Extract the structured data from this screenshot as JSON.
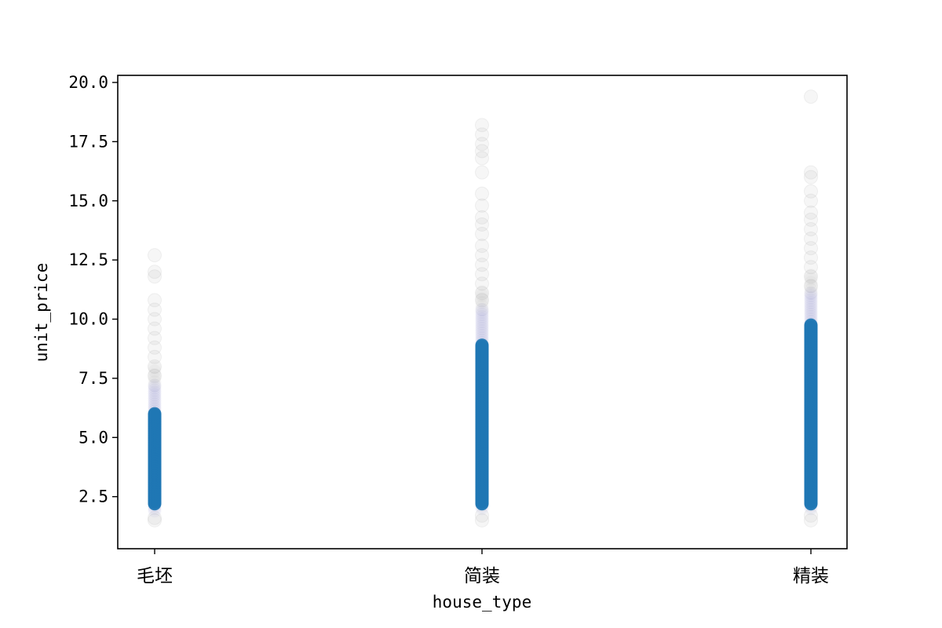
{
  "chart_data": {
    "type": "scatter",
    "title": "",
    "xlabel": "house_type",
    "ylabel": "unit_price",
    "categories": [
      "毛坯",
      "简装",
      "精装"
    ],
    "ylim": [
      0.3,
      20.3
    ],
    "yticks": [
      2.5,
      5.0,
      7.5,
      10.0,
      12.5,
      15.0,
      17.5,
      20.0
    ],
    "ytick_labels": [
      "2.5",
      "5.0",
      "7.5",
      "10.0",
      "12.5",
      "15.0",
      "17.5",
      "20.0"
    ],
    "grid": false,
    "legend": "none",
    "series": [
      {
        "category": "毛坯",
        "dense_range": [
          2.2,
          6.0
        ],
        "purple_range": [
          1.9,
          7.2
        ],
        "outliers": [
          1.5,
          1.6,
          7.6,
          8.0,
          8.4,
          8.8,
          9.2,
          9.6,
          10.0,
          10.4,
          10.8,
          11.8,
          12.0,
          12.7
        ]
      },
      {
        "category": "简装",
        "dense_range": [
          2.2,
          8.9
        ],
        "purple_range": [
          2.0,
          10.4
        ],
        "outliers": [
          1.5,
          1.7,
          10.8,
          11.1,
          11.5,
          11.9,
          12.3,
          12.7,
          13.1,
          13.6,
          14.0,
          14.3,
          14.8,
          15.3,
          16.2,
          16.8,
          17.1,
          17.4,
          17.8,
          18.2
        ]
      },
      {
        "category": "精装",
        "dense_range": [
          2.2,
          9.8
        ],
        "purple_range": [
          2.0,
          11.1
        ],
        "outliers": [
          1.5,
          1.7,
          11.4,
          11.8,
          12.2,
          12.6,
          13.0,
          13.4,
          13.8,
          14.2,
          14.5,
          15.0,
          15.4,
          16.0,
          16.2,
          19.4
        ]
      }
    ],
    "colors": {
      "main": "#1f77b4",
      "fade": "#808080",
      "purple": "#6a5fc0"
    }
  }
}
